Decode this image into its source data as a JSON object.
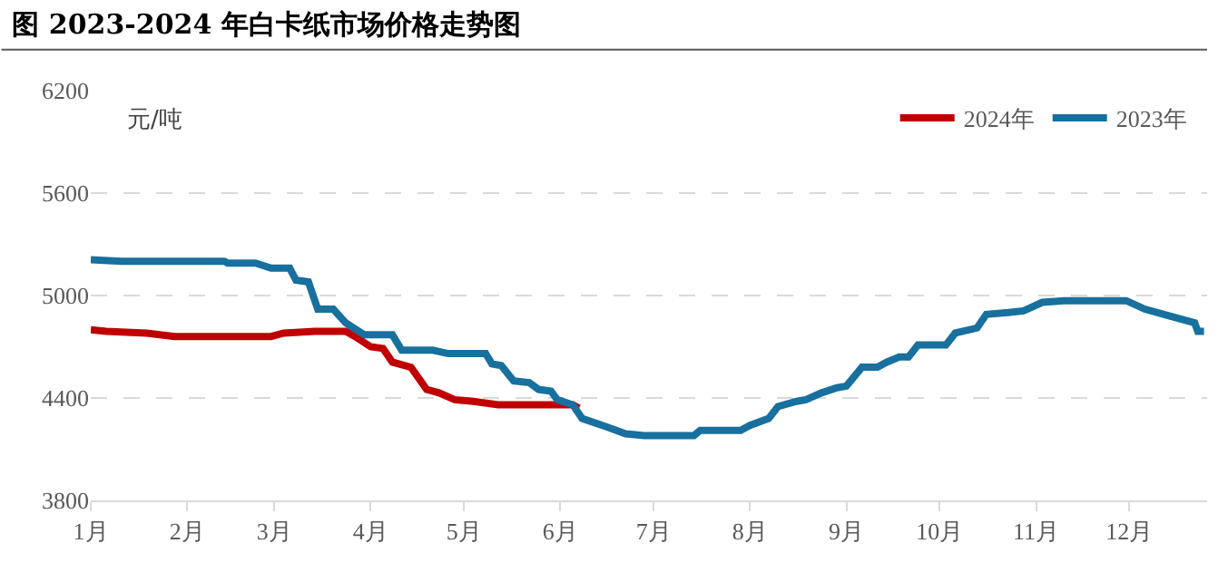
{
  "chart_data": {
    "type": "line",
    "title": "图 2023-2024 年白卡纸市场价格走势图",
    "ylabel": "元/吨",
    "ylim": [
      3800,
      6200
    ],
    "yticks": [
      3800,
      4400,
      5000,
      5600,
      6200
    ],
    "xlim": [
      "--01-01",
      "--12-26"
    ],
    "xticks": [
      {
        "value": "--01-01",
        "label": "1月"
      },
      {
        "value": "--02-01",
        "label": "2月"
      },
      {
        "value": "--03-01",
        "label": "3月"
      },
      {
        "value": "--04-01",
        "label": "4月"
      },
      {
        "value": "--05-01",
        "label": "5月"
      },
      {
        "value": "--06-01",
        "label": "6月"
      },
      {
        "value": "--07-01",
        "label": "7月"
      },
      {
        "value": "--08-01",
        "label": "8月"
      },
      {
        "value": "--09-01",
        "label": "9月"
      },
      {
        "value": "--10-01",
        "label": "10月"
      },
      {
        "value": "--11-01",
        "label": "11月"
      },
      {
        "value": "--12-01",
        "label": "12月"
      }
    ],
    "grid": "y",
    "legend": "top right",
    "line_style": "solid",
    "marker": "none",
    "series": [
      {
        "name": "2024年",
        "color": "#c00000",
        "x": [
          "--01-01",
          "--01-06",
          "--01-19",
          "--01-28",
          "--02-28",
          "--03-04",
          "--03-14",
          "--03-24",
          "--03-27",
          "--04-01",
          "--04-05",
          "--04-08",
          "--04-14",
          "--04-19",
          "--04-23",
          "--04-28",
          "--05-04",
          "--05-12",
          "--06-05",
          "--06-07"
        ],
        "values": [
          4800,
          4790,
          4780,
          4760,
          4760,
          4780,
          4790,
          4790,
          4760,
          4700,
          4690,
          4610,
          4580,
          4450,
          4430,
          4390,
          4380,
          4360,
          4360,
          4340
        ]
      },
      {
        "name": "2023年",
        "color": "#17709e",
        "x": [
          "--01-01",
          "--01-11",
          "--02-13",
          "--02-14",
          "--02-23",
          "--02-28",
          "--03-06",
          "--03-08",
          "--03-12",
          "--03-15",
          "--03-20",
          "--03-24",
          "--03-30",
          "--04-08",
          "--04-11",
          "--04-21",
          "--04-26",
          "--05-08",
          "--05-10",
          "--05-13",
          "--05-17",
          "--05-22",
          "--05-25",
          "--05-29",
          "--05-31",
          "--06-05",
          "--06-08",
          "--06-16",
          "--06-22",
          "--06-28",
          "--07-14",
          "--07-16",
          "--07-29",
          "--08-01",
          "--08-07",
          "--08-10",
          "--08-16",
          "--08-19",
          "--08-24",
          "--08-29",
          "--09-01",
          "--09-06",
          "--09-11",
          "--09-14",
          "--09-18",
          "--09-21",
          "--09-24",
          "--10-03",
          "--10-06",
          "--10-13",
          "--10-16",
          "--10-23",
          "--10-28",
          "--11-03",
          "--11-10",
          "--11-30",
          "--12-06",
          "--12-14",
          "--12-22",
          "--12-23",
          "--12-25"
        ],
        "values": [
          5210,
          5200,
          5200,
          5190,
          5190,
          5160,
          5160,
          5090,
          5080,
          4920,
          4920,
          4840,
          4770,
          4770,
          4680,
          4680,
          4660,
          4660,
          4600,
          4590,
          4500,
          4490,
          4450,
          4440,
          4390,
          4360,
          4280,
          4230,
          4190,
          4180,
          4180,
          4210,
          4210,
          4240,
          4280,
          4350,
          4380,
          4390,
          4430,
          4460,
          4470,
          4580,
          4580,
          4610,
          4640,
          4640,
          4710,
          4710,
          4780,
          4810,
          4890,
          4900,
          4910,
          4960,
          4970,
          4970,
          4920,
          4880,
          4840,
          4790,
          4790
        ]
      }
    ]
  }
}
